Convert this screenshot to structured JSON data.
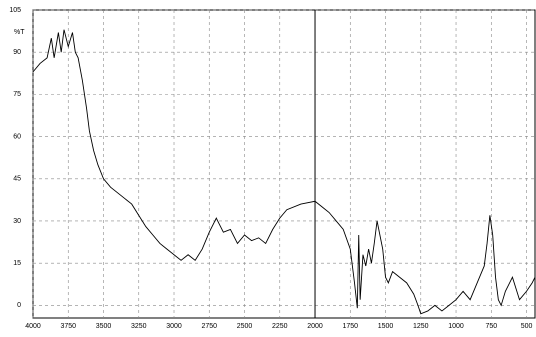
{
  "chart_data": {
    "type": "line",
    "y_label": "%T",
    "x": [
      4000,
      3950,
      3900,
      3870,
      3850,
      3820,
      3800,
      3780,
      3750,
      3720,
      3700,
      3680,
      3650,
      3620,
      3600,
      3570,
      3540,
      3500,
      3450,
      3400,
      3350,
      3300,
      3250,
      3200,
      3150,
      3100,
      3050,
      3000,
      2950,
      2900,
      2850,
      2800,
      2750,
      2700,
      2680,
      2650,
      2600,
      2550,
      2500,
      2450,
      2400,
      2350,
      2300,
      2250,
      2200,
      2100,
      2000,
      1950,
      1900,
      1850,
      1800,
      1750,
      1720,
      1700,
      1690,
      1680,
      1660,
      1640,
      1620,
      1600,
      1580,
      1560,
      1540,
      1520,
      1500,
      1480,
      1450,
      1400,
      1350,
      1300,
      1270,
      1250,
      1200,
      1150,
      1100,
      1050,
      1000,
      950,
      900,
      850,
      800,
      780,
      760,
      740,
      720,
      700,
      680,
      650,
      600,
      550,
      500,
      460,
      440
    ],
    "series": [
      {
        "name": "%T",
        "color": "#000000",
        "values": [
          83,
          86,
          88,
          95,
          88,
          97,
          90,
          98,
          92,
          97,
          90,
          88,
          80,
          70,
          62,
          55,
          50,
          45,
          42,
          40,
          38,
          36,
          32,
          28,
          25,
          22,
          20,
          18,
          16,
          18,
          16,
          20,
          26,
          31,
          29,
          26,
          27,
          22,
          25,
          23,
          24,
          22,
          27,
          31,
          34,
          36,
          37,
          35,
          33,
          30,
          27,
          20,
          8,
          -1,
          25,
          2,
          18,
          14,
          20,
          15,
          22,
          30,
          25,
          20,
          10,
          8,
          12,
          10,
          8,
          4,
          0,
          -3,
          -2,
          0,
          -2,
          0,
          2,
          5,
          2,
          8,
          14,
          22,
          32,
          25,
          10,
          2,
          0,
          5,
          10,
          2,
          5,
          8,
          10
        ]
      }
    ],
    "xlim": [
      4000,
      440
    ],
    "xticks": [
      4000,
      3750,
      3500,
      3250,
      3000,
      2750,
      2500,
      2250,
      2000,
      1750,
      1500,
      1250,
      1000,
      750,
      500
    ],
    "ylim": [
      -4.5,
      105
    ],
    "yticks": [
      0,
      15,
      30,
      45,
      60,
      75,
      90,
      105
    ],
    "grid": true,
    "cursor_x": 2000
  }
}
